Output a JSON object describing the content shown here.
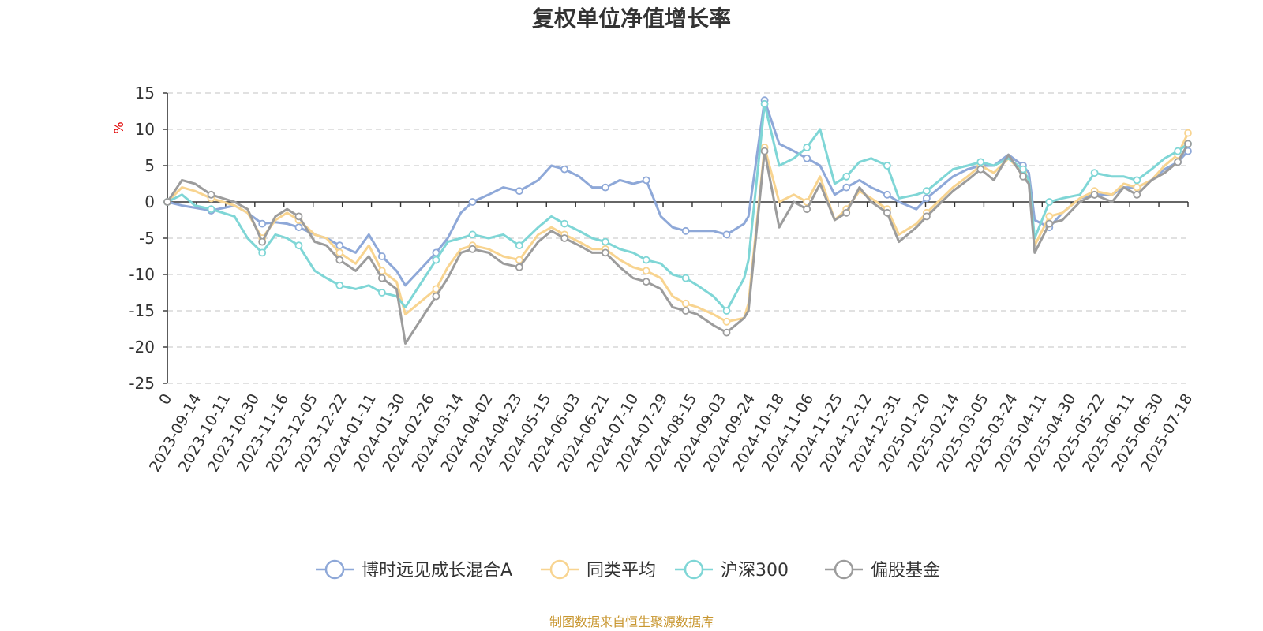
{
  "title": "复权单位净值增长率",
  "source_note": "制图数据来自恒生聚源数据库",
  "chart_data": {
    "type": "line",
    "title": "复权单位净值增长率",
    "xlabel": "",
    "ylabel": "%",
    "ylim": [
      -25,
      15
    ],
    "yticks": [
      15,
      10,
      5,
      0,
      -5,
      -10,
      -15,
      -20,
      -25
    ],
    "xlim": [
      "2023-08-26",
      "2025-07-25"
    ],
    "x_tick_labels": [
      "0",
      "2023-09-14",
      "2023-10-11",
      "2023-10-30",
      "2023-11-16",
      "2023-12-05",
      "2023-12-22",
      "2024-01-11",
      "2024-01-30",
      "2024-02-26",
      "2024-03-14",
      "2024-04-02",
      "2024-04-23",
      "2024-05-15",
      "2024-06-03",
      "2024-06-21",
      "2024-07-10",
      "2024-07-29",
      "2024-08-15",
      "2024-09-03",
      "2024-09-24",
      "2024-10-18",
      "2024-11-06",
      "2024-11-25",
      "2024-12-12",
      "2024-12-31",
      "2025-01-20",
      "2025-02-14",
      "2025-03-05",
      "2025-03-24",
      "2025-04-11",
      "2025-04-30",
      "2025-05-22",
      "2025-06-11",
      "2025-06-30",
      "2025-07-18"
    ],
    "grid": true,
    "legend_position": "bottom",
    "dates": [
      "2023-08-26",
      "2023-09-05",
      "2023-09-14",
      "2023-09-25",
      "2023-10-11",
      "2023-10-20",
      "2023-10-30",
      "2023-11-08",
      "2023-11-16",
      "2023-11-24",
      "2023-12-05",
      "2023-12-13",
      "2023-12-22",
      "2024-01-02",
      "2024-01-11",
      "2024-01-20",
      "2024-01-30",
      "2024-02-05",
      "2024-02-26",
      "2024-03-05",
      "2024-03-14",
      "2024-03-22",
      "2024-04-02",
      "2024-04-12",
      "2024-04-23",
      "2024-05-06",
      "2024-05-15",
      "2024-05-24",
      "2024-06-03",
      "2024-06-12",
      "2024-06-21",
      "2024-07-01",
      "2024-07-10",
      "2024-07-19",
      "2024-07-29",
      "2024-08-06",
      "2024-08-15",
      "2024-08-23",
      "2024-09-03",
      "2024-09-12",
      "2024-09-24",
      "2024-09-27",
      "2024-10-08",
      "2024-10-18",
      "2024-10-28",
      "2024-11-06",
      "2024-11-15",
      "2024-11-25",
      "2024-12-03",
      "2024-12-12",
      "2024-12-20",
      "2024-12-31",
      "2025-01-08",
      "2025-01-20",
      "2025-01-27",
      "2025-02-14",
      "2025-02-24",
      "2025-03-05",
      "2025-03-14",
      "2025-03-24",
      "2025-04-03",
      "2025-04-07",
      "2025-04-11",
      "2025-04-21",
      "2025-04-30",
      "2025-05-12",
      "2025-05-22",
      "2025-06-03",
      "2025-06-11",
      "2025-06-20",
      "2025-06-30",
      "2025-07-09",
      "2025-07-18",
      "2025-07-25"
    ],
    "series": [
      {
        "name": "博时远见成长混合A",
        "color": "#8ea8d8",
        "values": [
          0,
          -0.5,
          -0.8,
          -1.2,
          -0.5,
          -1.5,
          -3.0,
          -2.8,
          -3.0,
          -3.5,
          -4.5,
          -5.0,
          -6.0,
          -7.0,
          -4.5,
          -7.5,
          -9.5,
          -11.5,
          -7.0,
          -5.0,
          -1.5,
          0,
          1.0,
          2.0,
          1.5,
          3.0,
          5.0,
          4.5,
          3.5,
          2.0,
          2.0,
          3.0,
          2.5,
          3.0,
          -2.0,
          -3.5,
          -4.0,
          -4.0,
          -4.0,
          -4.5,
          -3.0,
          -2.0,
          14.0,
          8.0,
          7.0,
          6.0,
          5.0,
          1.0,
          2.0,
          3.0,
          2.0,
          1.0,
          0,
          -1.0,
          0.5,
          3.5,
          4.5,
          5.0,
          5.0,
          6.5,
          5.0,
          4.0,
          -2.5,
          -3.5,
          -1.5,
          0.5,
          1.0,
          1.0,
          2.0,
          2.0,
          3.0,
          4.5,
          5.5,
          7.0
        ]
      },
      {
        "name": "同类平均",
        "color": "#f8d490",
        "values": [
          0,
          2.0,
          1.5,
          0.5,
          -0.5,
          -1.5,
          -5.0,
          -2.5,
          -1.5,
          -2.5,
          -4.5,
          -5.0,
          -7.0,
          -8.5,
          -6.0,
          -9.5,
          -11.0,
          -15.5,
          -12.0,
          -9.0,
          -6.5,
          -6.0,
          -6.5,
          -7.5,
          -8.0,
          -4.5,
          -3.5,
          -4.5,
          -5.5,
          -6.5,
          -6.5,
          -8.0,
          -9.0,
          -9.5,
          -10.5,
          -13.0,
          -14.0,
          -14.5,
          -15.5,
          -16.5,
          -16.0,
          -14.0,
          7.5,
          0,
          1.0,
          0,
          3.5,
          -2.5,
          -1.0,
          1.5,
          0.5,
          -1.0,
          -4.5,
          -3.0,
          -1.5,
          2.0,
          3.5,
          5.0,
          4.0,
          6.0,
          4.0,
          3.0,
          -6.0,
          -2.0,
          -1.5,
          0.5,
          1.5,
          1.0,
          2.5,
          2.0,
          3.0,
          5.0,
          6.5,
          9.5
        ]
      },
      {
        "name": "沪深300",
        "color": "#7fd6d6",
        "values": [
          0,
          1.0,
          -0.5,
          -1.0,
          -2.0,
          -5.0,
          -7.0,
          -4.5,
          -5.0,
          -6.0,
          -9.5,
          -10.5,
          -11.5,
          -12.0,
          -11.5,
          -12.5,
          -13.0,
          -14.5,
          -8.0,
          -5.5,
          -5.0,
          -4.5,
          -5.0,
          -4.5,
          -6.0,
          -3.5,
          -2.0,
          -3.0,
          -4.0,
          -5.0,
          -5.5,
          -6.5,
          -7.0,
          -8.0,
          -8.5,
          -10.0,
          -10.5,
          -11.5,
          -13.0,
          -15.0,
          -10.5,
          -8.0,
          13.5,
          5.0,
          6.0,
          7.5,
          10.0,
          2.5,
          3.5,
          5.5,
          6.0,
          5.0,
          0.5,
          1.0,
          1.5,
          4.5,
          5.0,
          5.5,
          5.0,
          6.0,
          4.5,
          3.0,
          -5.0,
          0,
          0.5,
          1.0,
          4.0,
          3.5,
          3.5,
          3.0,
          4.5,
          6.0,
          7.0,
          8.0
        ]
      },
      {
        "name": "偏股基金",
        "color": "#9c9c9c",
        "values": [
          0,
          3.0,
          2.5,
          1.0,
          0,
          -1.0,
          -5.5,
          -2.0,
          -1.0,
          -2.0,
          -5.5,
          -6.0,
          -8.0,
          -9.5,
          -7.5,
          -10.5,
          -12.0,
          -19.5,
          -13.0,
          -10.5,
          -7.0,
          -6.5,
          -7.0,
          -8.5,
          -9.0,
          -5.5,
          -4.0,
          -5.0,
          -6.0,
          -7.0,
          -7.0,
          -9.0,
          -10.5,
          -11.0,
          -12.0,
          -14.5,
          -15.0,
          -15.5,
          -17.0,
          -18.0,
          -16.0,
          -15.0,
          7.0,
          -3.5,
          0,
          -1.0,
          2.5,
          -2.5,
          -1.5,
          2.0,
          0,
          -1.5,
          -5.5,
          -3.5,
          -2.0,
          1.5,
          3.0,
          4.5,
          3.0,
          6.5,
          3.5,
          2.5,
          -7.0,
          -3.0,
          -2.5,
          0,
          1.0,
          0,
          2.0,
          1.0,
          3.0,
          4.0,
          5.5,
          8.0
        ]
      }
    ]
  }
}
